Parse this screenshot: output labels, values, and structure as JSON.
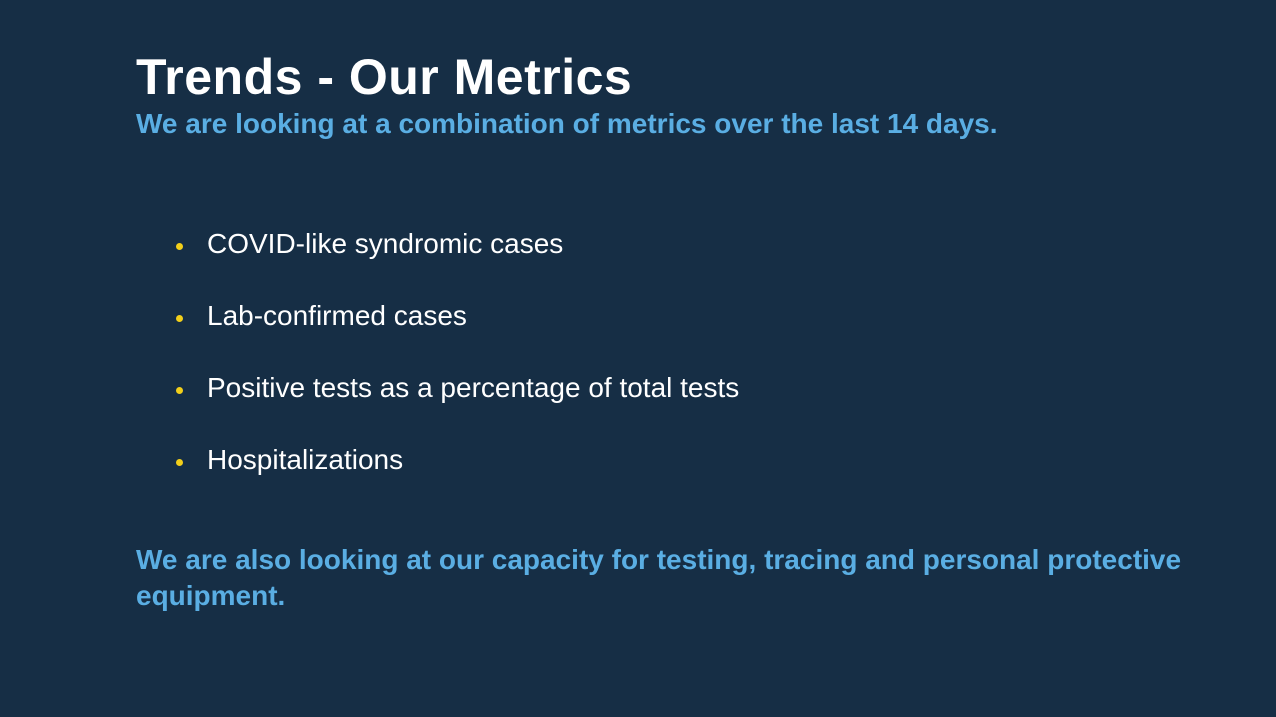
{
  "slide": {
    "title": "Trends - Our Metrics",
    "subtitle": "We are looking at a combination of metrics over the last 14 days.",
    "bullets": [
      "COVID-like syndromic cases",
      "Lab-confirmed cases",
      "Positive tests as a percentage of total tests",
      "Hospitalizations"
    ],
    "note": "We are also looking at our capacity for testing, tracing and personal protective equipment.",
    "colors": {
      "background": "#162e45",
      "accent_blue": "#5aaee3",
      "bullet_yellow": "#f2cf1a"
    }
  }
}
